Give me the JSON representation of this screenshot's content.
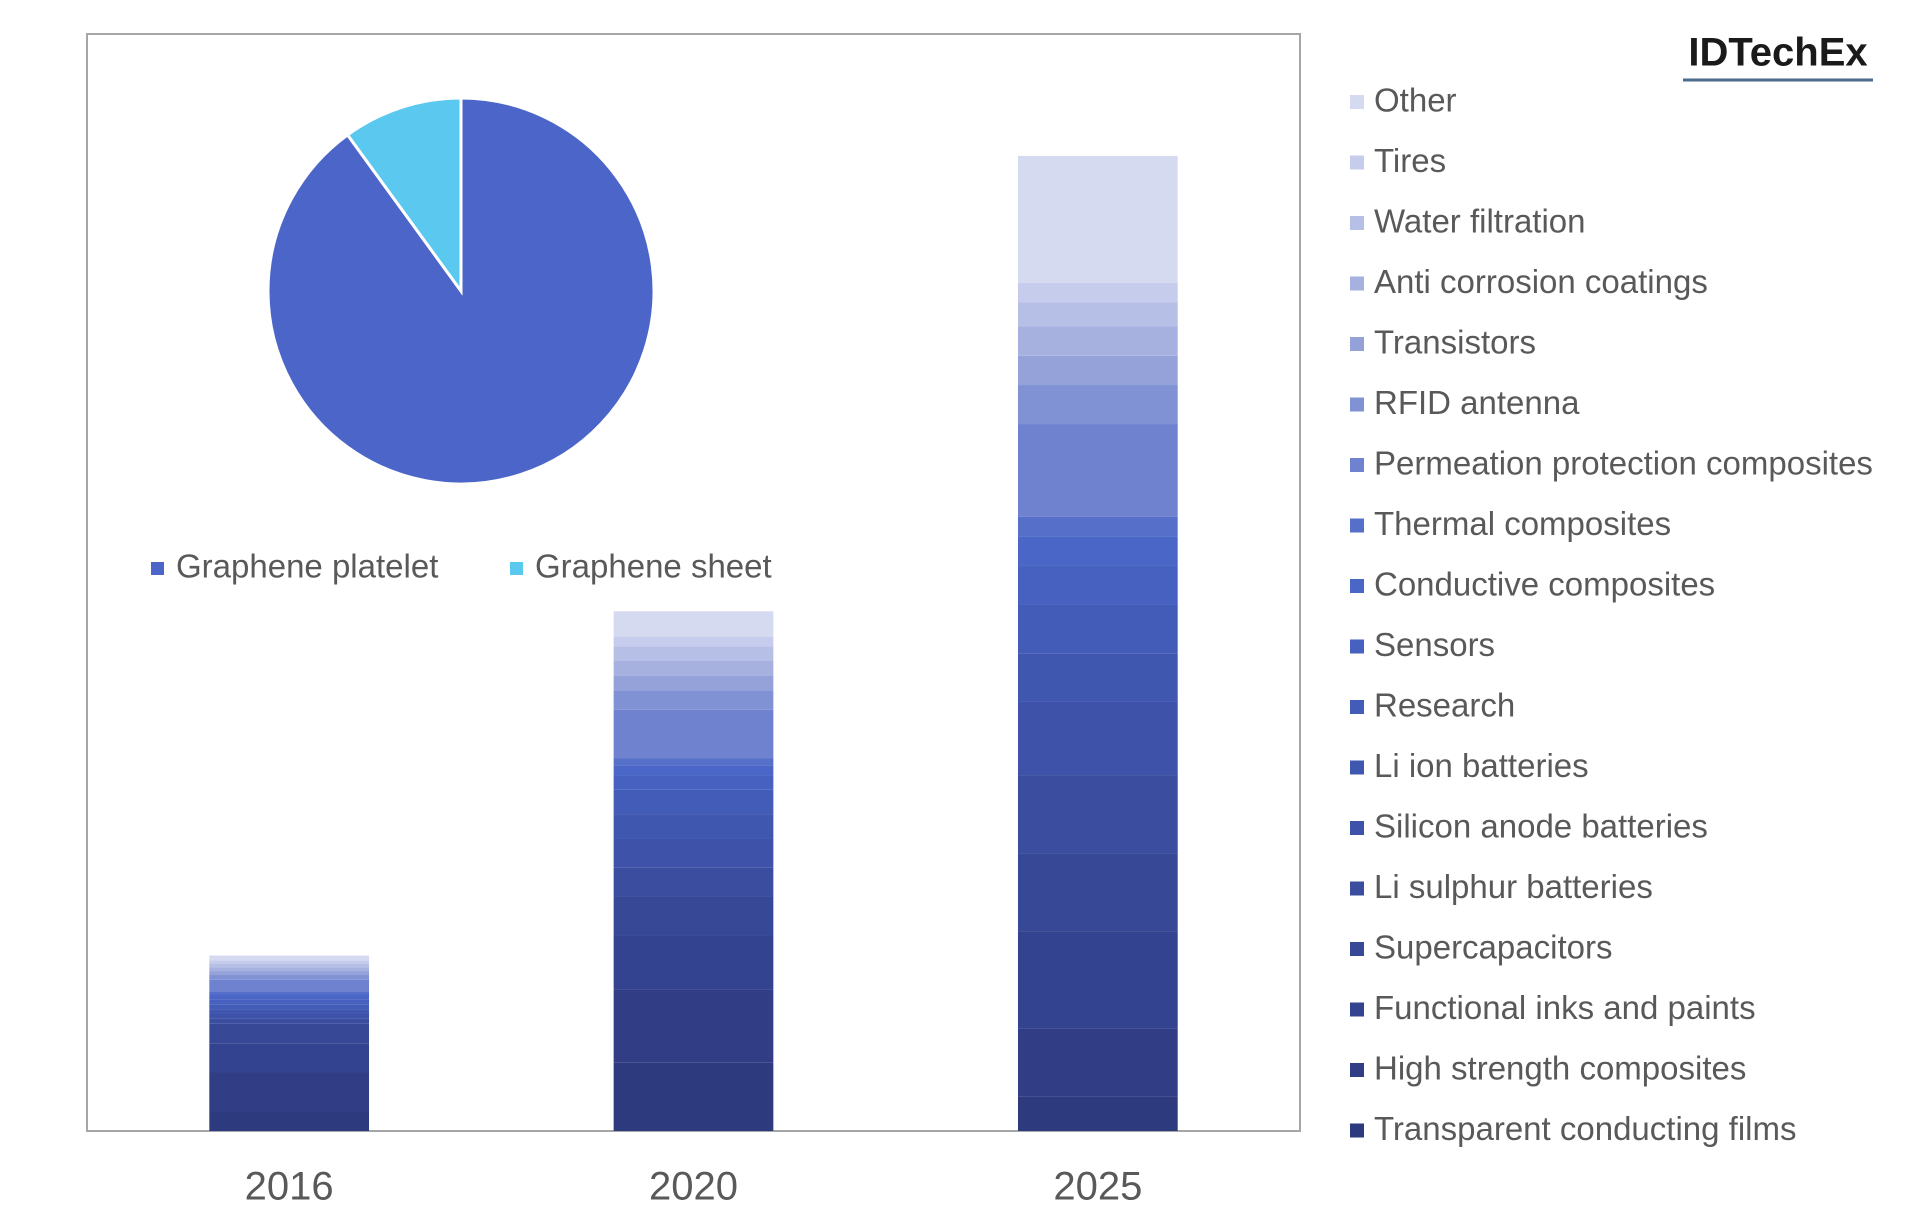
{
  "chart_data": [
    {
      "type": "bar",
      "stacked": true,
      "annotation": "IDTechEx",
      "categories": [
        "2016",
        "2020",
        "2025"
      ],
      "ylim": [
        0,
        112.5
      ],
      "legend": "right",
      "series": [
        {
          "name": "Transparent conducting films",
          "color": "#2e3a7e",
          "values": [
            2,
            7,
            3.5
          ]
        },
        {
          "name": "High strength composites",
          "color": "#313e86",
          "values": [
            4,
            7.5,
            7
          ]
        },
        {
          "name": "Functional inks and paints",
          "color": "#34438f",
          "values": [
            3,
            5.5,
            10
          ]
        },
        {
          "name": "Supercapacitors",
          "color": "#374897",
          "values": [
            2,
            4,
            8
          ]
        },
        {
          "name": "Li sulphur batteries",
          "color": "#3a4d9f",
          "values": [
            0.5,
            3,
            8
          ]
        },
        {
          "name": "Silicon anode batteries",
          "color": "#3d52a8",
          "values": [
            0.5,
            3,
            7.5
          ]
        },
        {
          "name": "Li ion batteries",
          "color": "#4057b0",
          "values": [
            0.5,
            2.5,
            5
          ]
        },
        {
          "name": "Research",
          "color": "#435cb8",
          "values": [
            0.5,
            2.5,
            5
          ]
        },
        {
          "name": "Sensors",
          "color": "#4661c0",
          "values": [
            0.5,
            1.5,
            4
          ]
        },
        {
          "name": "Conductive composites",
          "color": "#4a66c6",
          "values": [
            0.5,
            1,
            3
          ]
        },
        {
          "name": "Thermal composites",
          "color": "#566fc9",
          "values": [
            0.3,
            0.7,
            2
          ]
        },
        {
          "name": "Permeation protection composites",
          "color": "#6e82cf",
          "values": [
            1.2,
            5,
            9.5
          ]
        },
        {
          "name": "RFID antenna",
          "color": "#8091d4",
          "values": [
            0.5,
            2,
            4
          ]
        },
        {
          "name": "Transistors",
          "color": "#95a2da",
          "values": [
            0.4,
            1.5,
            3
          ]
        },
        {
          "name": "Anti corrosion coatings",
          "color": "#a6b1e0",
          "values": [
            0.4,
            1.5,
            3
          ]
        },
        {
          "name": "Water filtration",
          "color": "#b6bfe6",
          "values": [
            0.4,
            1.5,
            2.5
          ]
        },
        {
          "name": "Tires",
          "color": "#c6cdec",
          "values": [
            0.3,
            1,
            2
          ]
        },
        {
          "name": "Other",
          "color": "#d6daf1",
          "values": [
            0.5,
            2.6,
            13
          ]
        }
      ]
    },
    {
      "type": "pie",
      "categories": [
        "Graphene platelet",
        "Graphene sheet"
      ],
      "values": [
        90,
        10
      ],
      "colors": [
        "#4c65c8",
        "#5bc8ef"
      ]
    }
  ]
}
